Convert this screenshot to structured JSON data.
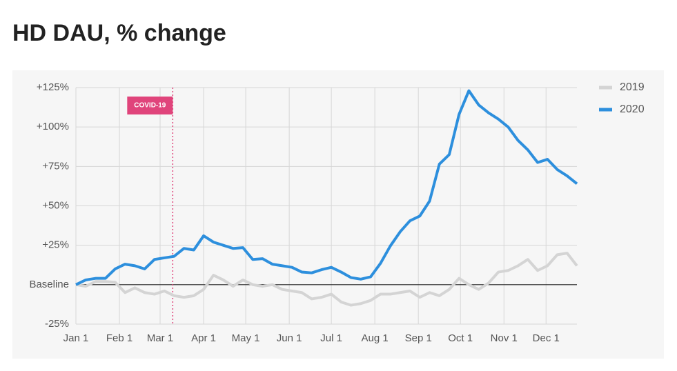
{
  "chart_data": {
    "type": "line",
    "title": "HD DAU, % change",
    "x": [
      0,
      7,
      14,
      21,
      28,
      35,
      42,
      49,
      56,
      63,
      70,
      77,
      84,
      91,
      98,
      105,
      112,
      119,
      126,
      133,
      140,
      147,
      154,
      161,
      168,
      175,
      182,
      189,
      196,
      203,
      210,
      217,
      224,
      231,
      238,
      245,
      252,
      259,
      266,
      273,
      280,
      287,
      294,
      301,
      308,
      315,
      322,
      329,
      336,
      343,
      350,
      357
    ],
    "series": [
      {
        "name": "2019",
        "color": "#d4d4d4",
        "values": [
          0,
          -1,
          2,
          2,
          1.5,
          -5,
          -2,
          -5,
          -6,
          -4,
          -7,
          -8,
          -7,
          -3,
          6,
          3,
          -1,
          3,
          0,
          -1,
          0,
          -3,
          -4,
          -5,
          -9,
          -8,
          -6,
          -11,
          -13,
          -12,
          -10,
          -6,
          -6,
          -5,
          -4,
          -8,
          -5,
          -7,
          -3,
          4,
          0,
          -3,
          1,
          8,
          9,
          12,
          16,
          9,
          12,
          19,
          20,
          12
        ]
      },
      {
        "name": "2020",
        "color": "#2d8fdd",
        "values": [
          0,
          3,
          4,
          4,
          10,
          13,
          12,
          10,
          16,
          17,
          18,
          23,
          22,
          31,
          27,
          25,
          23,
          23.5,
          16,
          16.5,
          13,
          12,
          11,
          8,
          7.5,
          9.5,
          11,
          8,
          4.5,
          3.5,
          5,
          13.5,
          24.5,
          33.5,
          40.5,
          43.5,
          53,
          76.5,
          82.5,
          108,
          123,
          114,
          109,
          105,
          100,
          91.5,
          85.5,
          77.5,
          79.5,
          73,
          69,
          64
        ]
      }
    ],
    "xlim": [
      0,
      357
    ],
    "xticks": [
      {
        "value": 0,
        "label": "Jan 1"
      },
      {
        "value": 31,
        "label": "Feb 1"
      },
      {
        "value": 60,
        "label": "Mar 1"
      },
      {
        "value": 91,
        "label": "Apr 1"
      },
      {
        "value": 121,
        "label": "May 1"
      },
      {
        "value": 152,
        "label": "Jun 1"
      },
      {
        "value": 182,
        "label": "Jul 1"
      },
      {
        "value": 213,
        "label": "Aug 1"
      },
      {
        "value": 244,
        "label": "Sep 1"
      },
      {
        "value": 274,
        "label": "Oct 1"
      },
      {
        "value": 305,
        "label": "Nov 1"
      },
      {
        "value": 335,
        "label": "Dec 1"
      }
    ],
    "ylim": [
      -25,
      125
    ],
    "yticks": [
      {
        "value": -25,
        "label": "-25%"
      },
      {
        "value": 0,
        "label": "Baseline"
      },
      {
        "value": 25,
        "label": "+25%"
      },
      {
        "value": 50,
        "label": "+50%"
      },
      {
        "value": 75,
        "label": "+75%"
      },
      {
        "value": 100,
        "label": "+100%"
      },
      {
        "value": 125,
        "label": "+125%"
      }
    ],
    "grid": true,
    "legend": "top-right",
    "annotation": {
      "text": "COVID-19",
      "x": 69,
      "color": "#e0447b"
    }
  }
}
